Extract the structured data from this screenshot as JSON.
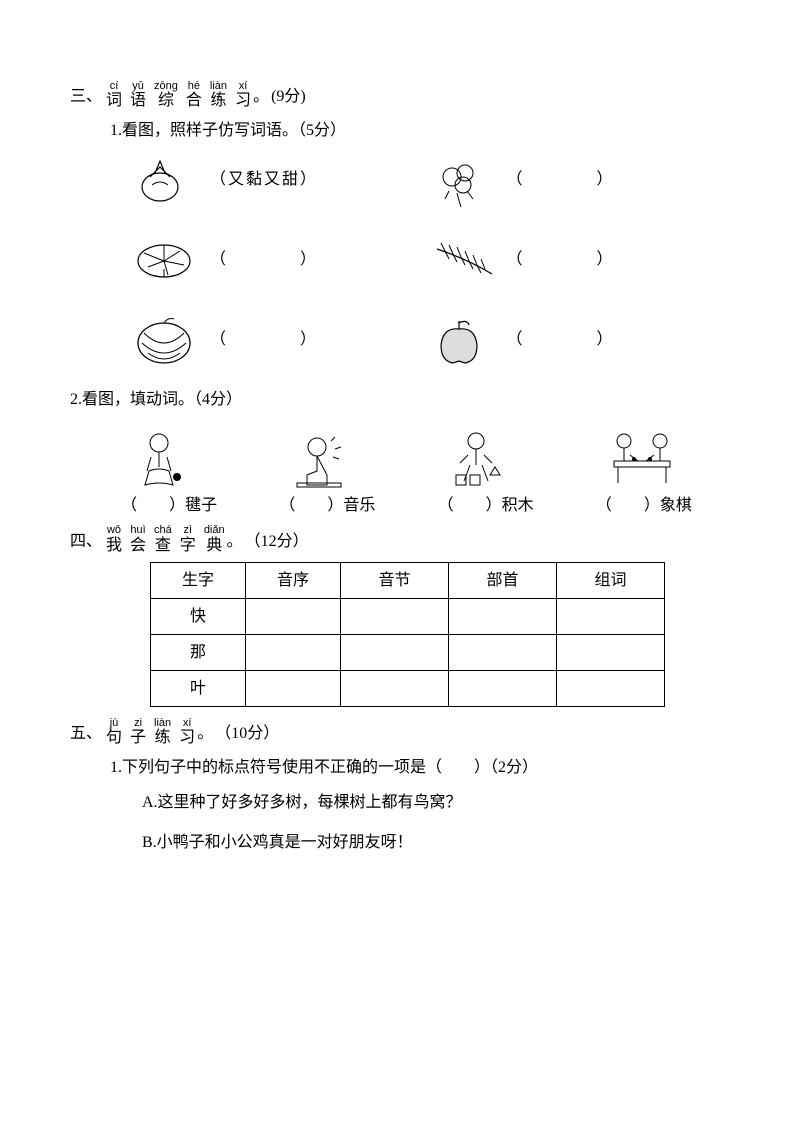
{
  "section3": {
    "num": "三、",
    "title_chars": [
      {
        "py": "cí",
        "ch": "词"
      },
      {
        "py": "yǔ",
        "ch": "语"
      },
      {
        "py": "zōng",
        "ch": "综"
      },
      {
        "py": "hé",
        "ch": "合"
      },
      {
        "py": "liàn",
        "ch": "练"
      },
      {
        "py": "xí",
        "ch": "习"
      }
    ],
    "punct": "。",
    "points": "(9分)",
    "q1": {
      "text": "1.看图，照样子仿写词语。（5分）",
      "items": [
        {
          "icon": "persimmon",
          "answer": "（又黏又甜）"
        },
        {
          "icon": "cotton",
          "answer": "（　　　　）"
        },
        {
          "icon": "lotus-leaf",
          "answer": "（　　　　）"
        },
        {
          "icon": "rice-ear",
          "answer": "（　　　　）"
        },
        {
          "icon": "watermelon",
          "answer": "（　　　　）"
        },
        {
          "icon": "apple",
          "answer": "（　　　　）"
        }
      ]
    },
    "q2": {
      "text": "2.看图，填动词。（4分）",
      "items": [
        {
          "icon": "shuttlecock",
          "label": "（　　）毽子"
        },
        {
          "icon": "music",
          "label": "（　　）音乐"
        },
        {
          "icon": "blocks",
          "label": "（　　）积木"
        },
        {
          "icon": "chess",
          "label": "（　　）象棋"
        }
      ]
    }
  },
  "section4": {
    "num": "四、",
    "title_chars": [
      {
        "py": "wǒ",
        "ch": "我"
      },
      {
        "py": "huì",
        "ch": "会"
      },
      {
        "py": "chá",
        "ch": "查"
      },
      {
        "py": "zì",
        "ch": "字"
      },
      {
        "py": "diǎn",
        "ch": "典"
      }
    ],
    "punct": "。",
    "points": "（12分）",
    "table": {
      "headers": [
        "生字",
        "音序",
        "音节",
        "部首",
        "组词"
      ],
      "rows": [
        [
          "快",
          "",
          "",
          "",
          ""
        ],
        [
          "那",
          "",
          "",
          "",
          ""
        ],
        [
          "叶",
          "",
          "",
          "",
          ""
        ]
      ]
    }
  },
  "section5": {
    "num": "五、",
    "title_chars": [
      {
        "py": "jù",
        "ch": "句"
      },
      {
        "py": "zi",
        "ch": "子"
      },
      {
        "py": "liàn",
        "ch": "练"
      },
      {
        "py": "xí",
        "ch": "习"
      }
    ],
    "punct": "。",
    "points": "（10分）",
    "q1": {
      "text": "1.下列句子中的标点符号使用不正确的一项是（　　）（2分）",
      "options": [
        "A.这里种了好多好多树，每棵树上都有鸟窝？",
        "B.小鸭子和小公鸡真是一对好朋友呀！"
      ]
    }
  }
}
